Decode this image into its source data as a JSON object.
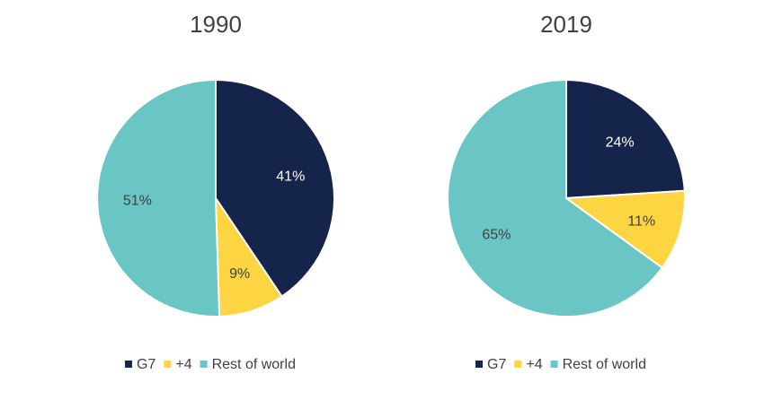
{
  "chart_data": [
    {
      "type": "pie",
      "title": "1990",
      "categories": [
        "G7",
        "+4",
        "Rest of world"
      ],
      "values": [
        41,
        9,
        51
      ],
      "labels": [
        "41%",
        "9%",
        "51%"
      ],
      "colors": [
        "#14244a",
        "#fdd441",
        "#6ac5c5"
      ],
      "label_colors": [
        "#ffffff",
        "#404040",
        "#404040"
      ],
      "legend_position": "bottom"
    },
    {
      "type": "pie",
      "title": "2019",
      "categories": [
        "G7",
        "+4",
        "Rest of world"
      ],
      "values": [
        24,
        11,
        65
      ],
      "labels": [
        "24%",
        "11%",
        "65%"
      ],
      "colors": [
        "#14244a",
        "#fdd441",
        "#6ac5c5"
      ],
      "label_colors": [
        "#ffffff",
        "#404040",
        "#404040"
      ],
      "legend_position": "bottom"
    }
  ]
}
